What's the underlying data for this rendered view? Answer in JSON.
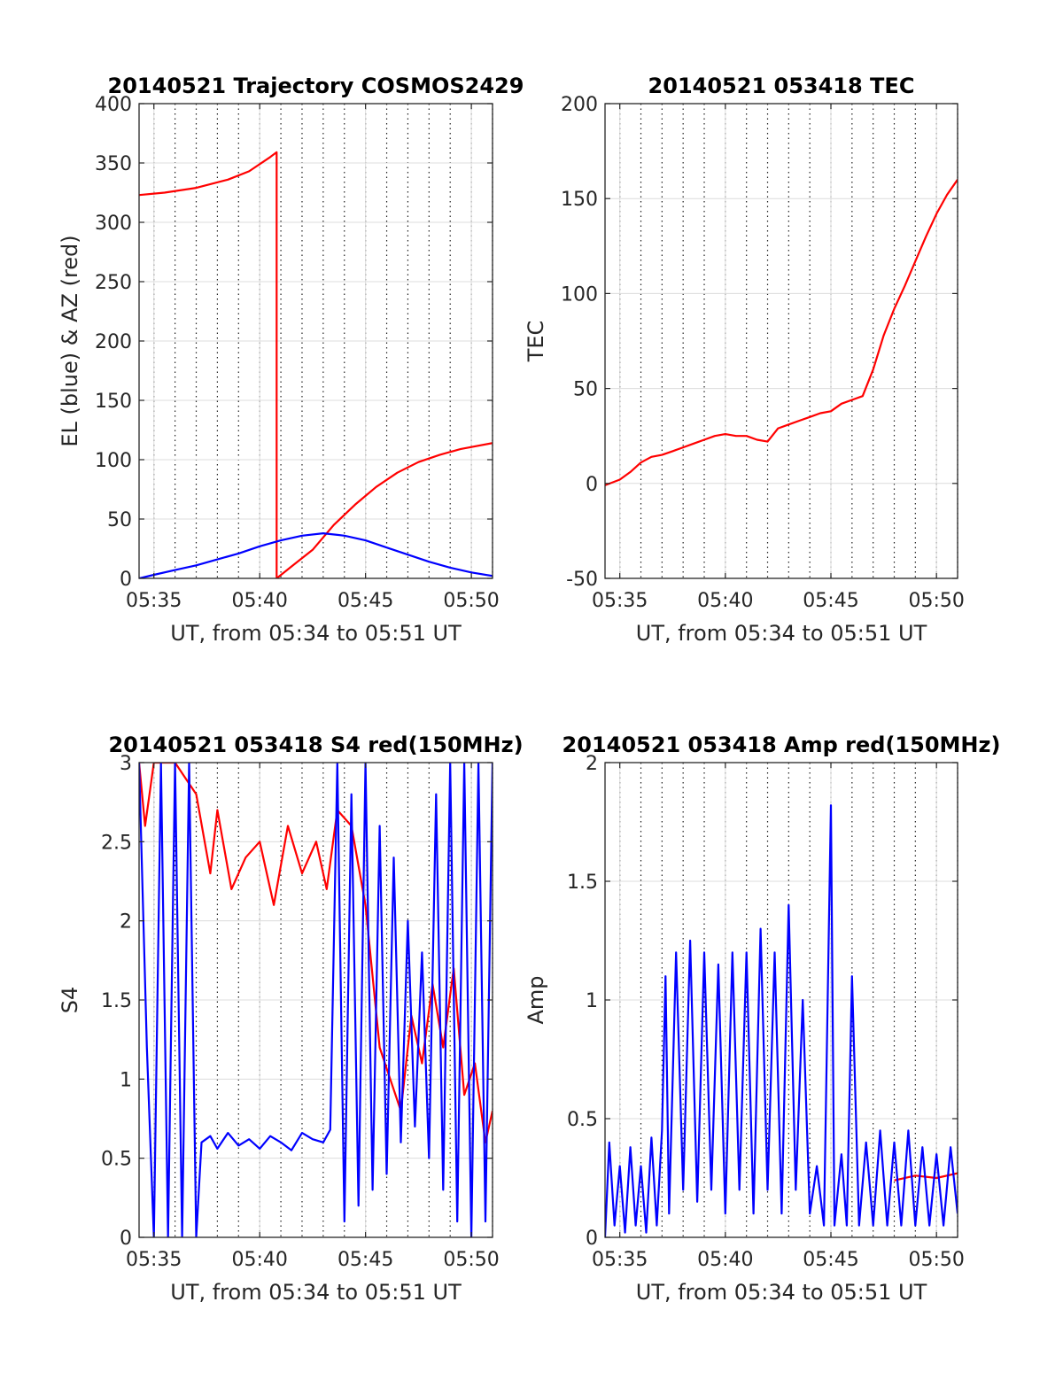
{
  "chart_data": [
    {
      "id": "traj",
      "type": "line",
      "title": "20140521 Trajectory COSMOS2429",
      "xlabel": "UT, from 05:34 to 05:51 UT",
      "ylabel": "EL (blue) & AZ (red)",
      "xlim": [
        "05:34:18",
        "05:51:00"
      ],
      "ylim": [
        0,
        400
      ],
      "x_ticks": [
        "05:35",
        "05:40",
        "05:45",
        "05:50"
      ],
      "y_ticks": [
        0,
        50,
        100,
        150,
        200,
        250,
        300,
        350,
        400
      ],
      "grid": true,
      "series": [
        {
          "color": "#ff0000",
          "points": [
            [
              "05:34:18",
              323
            ],
            [
              "05:35:30",
              325
            ],
            [
              "05:37:00",
              329
            ],
            [
              "05:38:30",
              336
            ],
            [
              "05:39:30",
              343
            ],
            [
              "05:40:30",
              355
            ],
            [
              "05:40:48",
              359
            ],
            [
              "05:40:48",
              0
            ],
            [
              "05:41:30",
              10
            ],
            [
              "05:42:30",
              24
            ],
            [
              "05:43:30",
              45
            ],
            [
              "05:44:30",
              62
            ],
            [
              "05:45:30",
              77
            ],
            [
              "05:46:30",
              89
            ],
            [
              "05:47:30",
              98
            ],
            [
              "05:48:30",
              104
            ],
            [
              "05:49:30",
              109
            ],
            [
              "05:51:00",
              114
            ]
          ]
        },
        {
          "color": "#0000ff",
          "points": [
            [
              "05:34:18",
              0
            ],
            [
              "05:35:00",
              3
            ],
            [
              "05:36:00",
              7
            ],
            [
              "05:37:00",
              11
            ],
            [
              "05:38:00",
              16
            ],
            [
              "05:39:00",
              21
            ],
            [
              "05:40:00",
              27
            ],
            [
              "05:41:00",
              32
            ],
            [
              "05:42:00",
              36
            ],
            [
              "05:43:00",
              38
            ],
            [
              "05:44:00",
              36
            ],
            [
              "05:45:00",
              32
            ],
            [
              "05:46:00",
              26
            ],
            [
              "05:47:00",
              20
            ],
            [
              "05:48:00",
              14
            ],
            [
              "05:49:00",
              9
            ],
            [
              "05:50:00",
              5
            ],
            [
              "05:51:00",
              2
            ]
          ]
        }
      ]
    },
    {
      "id": "tec",
      "type": "line",
      "title": "20140521 053418 TEC",
      "xlabel": "UT, from 05:34 to 05:51 UT",
      "ylabel": "TEC",
      "xlim": [
        "05:34:18",
        "05:51:00"
      ],
      "ylim": [
        -50,
        200
      ],
      "x_ticks": [
        "05:35",
        "05:40",
        "05:45",
        "05:50"
      ],
      "y_ticks": [
        -50,
        0,
        50,
        100,
        150,
        200
      ],
      "grid": true,
      "series": [
        {
          "color": "#ff0000",
          "points": [
            [
              "05:34:18",
              -1
            ],
            [
              "05:35:00",
              2
            ],
            [
              "05:35:30",
              6
            ],
            [
              "05:36:00",
              11
            ],
            [
              "05:36:30",
              14
            ],
            [
              "05:37:00",
              15
            ],
            [
              "05:37:30",
              17
            ],
            [
              "05:38:00",
              19
            ],
            [
              "05:38:30",
              21
            ],
            [
              "05:39:00",
              23
            ],
            [
              "05:39:30",
              25
            ],
            [
              "05:40:00",
              26
            ],
            [
              "05:40:30",
              25
            ],
            [
              "05:41:00",
              25
            ],
            [
              "05:41:30",
              23
            ],
            [
              "05:42:00",
              22
            ],
            [
              "05:42:30",
              29
            ],
            [
              "05:43:00",
              31
            ],
            [
              "05:43:30",
              33
            ],
            [
              "05:44:00",
              35
            ],
            [
              "05:44:30",
              37
            ],
            [
              "05:45:00",
              38
            ],
            [
              "05:45:30",
              42
            ],
            [
              "05:46:00",
              44
            ],
            [
              "05:46:30",
              46
            ],
            [
              "05:47:00",
              60
            ],
            [
              "05:47:30",
              78
            ],
            [
              "05:48:00",
              92
            ],
            [
              "05:48:30",
              104
            ],
            [
              "05:49:00",
              117
            ],
            [
              "05:49:30",
              130
            ],
            [
              "05:50:00",
              142
            ],
            [
              "05:50:30",
              152
            ],
            [
              "05:51:00",
              160
            ]
          ]
        }
      ]
    },
    {
      "id": "s4",
      "type": "line",
      "title": "20140521 053418 S4 red(150MHz)",
      "xlabel": "UT, from 05:34 to 05:51 UT",
      "ylabel": "S4",
      "xlim": [
        "05:34:18",
        "05:51:00"
      ],
      "ylim": [
        0,
        3
      ],
      "x_ticks": [
        "05:35",
        "05:40",
        "05:45",
        "05:50"
      ],
      "y_ticks": [
        0,
        0.5,
        1,
        1.5,
        2,
        2.5,
        3
      ],
      "grid": true,
      "series": [
        {
          "color": "#ff0000",
          "points": [
            [
              "05:34:18",
              3.0
            ],
            [
              "05:34:35",
              2.6
            ],
            [
              "05:35:00",
              3.0
            ],
            [
              "05:36:00",
              3.0
            ],
            [
              "05:37:00",
              2.8
            ],
            [
              "05:37:40",
              2.3
            ],
            [
              "05:38:00",
              2.7
            ],
            [
              "05:38:40",
              2.2
            ],
            [
              "05:39:20",
              2.4
            ],
            [
              "05:40:00",
              2.5
            ],
            [
              "05:40:40",
              2.1
            ],
            [
              "05:41:20",
              2.6
            ],
            [
              "05:42:00",
              2.3
            ],
            [
              "05:42:40",
              2.5
            ],
            [
              "05:43:10",
              2.2
            ],
            [
              "05:43:40",
              2.7
            ],
            [
              "05:44:20",
              2.6
            ],
            [
              "05:45:00",
              2.1
            ],
            [
              "05:45:40",
              1.2
            ],
            [
              "05:46:10",
              1.0
            ],
            [
              "05:46:40",
              0.8
            ],
            [
              "05:47:10",
              1.4
            ],
            [
              "05:47:40",
              1.1
            ],
            [
              "05:48:10",
              1.6
            ],
            [
              "05:48:40",
              1.2
            ],
            [
              "05:49:10",
              1.7
            ],
            [
              "05:49:40",
              0.9
            ],
            [
              "05:50:10",
              1.1
            ],
            [
              "05:50:40",
              0.6
            ],
            [
              "05:51:00",
              0.8
            ]
          ]
        },
        {
          "color": "#0000ff",
          "points": [
            [
              "05:34:18",
              3.0
            ],
            [
              "05:34:40",
              1.2
            ],
            [
              "05:35:00",
              0.0
            ],
            [
              "05:35:20",
              3.0
            ],
            [
              "05:35:40",
              0.0
            ],
            [
              "05:36:00",
              3.0
            ],
            [
              "05:36:20",
              0.0
            ],
            [
              "05:36:40",
              3.0
            ],
            [
              "05:37:00",
              0.0
            ],
            [
              "05:37:15",
              0.6
            ],
            [
              "05:37:40",
              0.64
            ],
            [
              "05:38:00",
              0.56
            ],
            [
              "05:38:30",
              0.66
            ],
            [
              "05:39:00",
              0.58
            ],
            [
              "05:39:30",
              0.62
            ],
            [
              "05:40:00",
              0.56
            ],
            [
              "05:40:30",
              0.64
            ],
            [
              "05:41:00",
              0.6
            ],
            [
              "05:41:30",
              0.55
            ],
            [
              "05:42:00",
              0.66
            ],
            [
              "05:42:30",
              0.62
            ],
            [
              "05:43:00",
              0.6
            ],
            [
              "05:43:20",
              0.68
            ],
            [
              "05:43:40",
              3.0
            ],
            [
              "05:44:00",
              0.1
            ],
            [
              "05:44:20",
              2.8
            ],
            [
              "05:44:40",
              0.2
            ],
            [
              "05:45:00",
              3.0
            ],
            [
              "05:45:20",
              0.3
            ],
            [
              "05:45:40",
              2.6
            ],
            [
              "05:46:00",
              0.4
            ],
            [
              "05:46:20",
              2.4
            ],
            [
              "05:46:40",
              0.6
            ],
            [
              "05:47:00",
              2.0
            ],
            [
              "05:47:20",
              0.7
            ],
            [
              "05:47:40",
              1.8
            ],
            [
              "05:48:00",
              0.5
            ],
            [
              "05:48:20",
              2.8
            ],
            [
              "05:48:40",
              0.3
            ],
            [
              "05:49:00",
              3.0
            ],
            [
              "05:49:20",
              0.1
            ],
            [
              "05:49:40",
              3.0
            ],
            [
              "05:50:00",
              0.0
            ],
            [
              "05:50:20",
              3.0
            ],
            [
              "05:50:40",
              0.1
            ],
            [
              "05:51:00",
              3.0
            ]
          ]
        }
      ]
    },
    {
      "id": "amp",
      "type": "line",
      "title": "20140521 053418 Amp red(150MHz)",
      "xlabel": "UT, from 05:34 to 05:51 UT",
      "ylabel": "Amp",
      "xlim": [
        "05:34:18",
        "05:51:00"
      ],
      "ylim": [
        0,
        2
      ],
      "x_ticks": [
        "05:35",
        "05:40",
        "05:45",
        "05:50"
      ],
      "y_ticks": [
        0,
        0.5,
        1,
        1.5,
        2
      ],
      "grid": true,
      "series": [
        {
          "color": "#ff0000",
          "points": [
            [
              "05:48:00",
              0.24
            ],
            [
              "05:49:00",
              0.26
            ],
            [
              "05:50:00",
              0.25
            ],
            [
              "05:51:00",
              0.27
            ]
          ]
        },
        {
          "color": "#0000ff",
          "points": [
            [
              "05:34:18",
              0.0
            ],
            [
              "05:34:30",
              0.4
            ],
            [
              "05:34:45",
              0.05
            ],
            [
              "05:35:00",
              0.3
            ],
            [
              "05:35:15",
              0.02
            ],
            [
              "05:35:30",
              0.38
            ],
            [
              "05:35:45",
              0.05
            ],
            [
              "05:36:00",
              0.3
            ],
            [
              "05:36:15",
              0.02
            ],
            [
              "05:36:30",
              0.42
            ],
            [
              "05:36:45",
              0.05
            ],
            [
              "05:37:00",
              0.45
            ],
            [
              "05:37:10",
              1.1
            ],
            [
              "05:37:20",
              0.1
            ],
            [
              "05:37:40",
              1.2
            ],
            [
              "05:38:00",
              0.2
            ],
            [
              "05:38:20",
              1.25
            ],
            [
              "05:38:40",
              0.15
            ],
            [
              "05:39:00",
              1.2
            ],
            [
              "05:39:20",
              0.2
            ],
            [
              "05:39:40",
              1.15
            ],
            [
              "05:40:00",
              0.1
            ],
            [
              "05:40:20",
              1.2
            ],
            [
              "05:40:40",
              0.2
            ],
            [
              "05:41:00",
              1.2
            ],
            [
              "05:41:20",
              0.1
            ],
            [
              "05:41:40",
              1.3
            ],
            [
              "05:42:00",
              0.2
            ],
            [
              "05:42:20",
              1.2
            ],
            [
              "05:42:40",
              0.1
            ],
            [
              "05:43:00",
              1.4
            ],
            [
              "05:43:20",
              0.2
            ],
            [
              "05:43:40",
              1.0
            ],
            [
              "05:44:00",
              0.1
            ],
            [
              "05:44:20",
              0.3
            ],
            [
              "05:44:40",
              0.05
            ],
            [
              "05:45:00",
              1.82
            ],
            [
              "05:45:10",
              0.05
            ],
            [
              "05:45:30",
              0.35
            ],
            [
              "05:45:45",
              0.05
            ],
            [
              "05:46:00",
              1.1
            ],
            [
              "05:46:20",
              0.05
            ],
            [
              "05:46:40",
              0.4
            ],
            [
              "05:47:00",
              0.05
            ],
            [
              "05:47:20",
              0.45
            ],
            [
              "05:47:40",
              0.05
            ],
            [
              "05:48:00",
              0.4
            ],
            [
              "05:48:20",
              0.05
            ],
            [
              "05:48:40",
              0.45
            ],
            [
              "05:49:00",
              0.05
            ],
            [
              "05:49:20",
              0.38
            ],
            [
              "05:49:40",
              0.05
            ],
            [
              "05:50:00",
              0.35
            ],
            [
              "05:50:20",
              0.05
            ],
            [
              "05:50:40",
              0.38
            ],
            [
              "05:51:00",
              0.1
            ]
          ]
        }
      ]
    }
  ]
}
